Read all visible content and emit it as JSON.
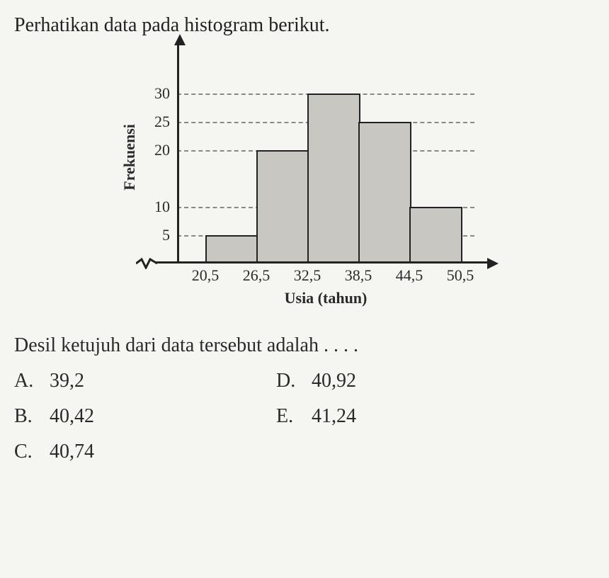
{
  "question": {
    "intro": "Perhatikan data pada histogram berikut.",
    "tail": "Desil ketujuh dari data tersebut adalah . . . ."
  },
  "chart": {
    "type": "histogram",
    "x_label": "Usia (tahun)",
    "y_label": "Frekuensi",
    "background_color": "#f5f5f2",
    "bar_fill": "#c9c7c1",
    "bar_border": "#222222",
    "axis_color": "#222222",
    "grid_color": "#888888",
    "grid_dash": "4 4",
    "y_max": 35,
    "y_ticks": [
      5,
      10,
      20,
      25,
      30
    ],
    "x_boundaries": [
      "20,5",
      "26,5",
      "32,5",
      "38,5",
      "44,5",
      "50,5"
    ],
    "bars": [
      {
        "from": "20,5",
        "to": "26,5",
        "value": 5
      },
      {
        "from": "26,5",
        "to": "32,5",
        "value": 20
      },
      {
        "from": "32,5",
        "to": "38,5",
        "value": 30
      },
      {
        "from": "38,5",
        "to": "44,5",
        "value": 25
      },
      {
        "from": "44,5",
        "to": "50,5",
        "value": 10
      }
    ],
    "label_fontsize": 22,
    "tick_fontsize": 22,
    "bar_border_width": 2.5,
    "axis_width": 3
  },
  "options": [
    {
      "letter": "A.",
      "value": "39,2"
    },
    {
      "letter": "B.",
      "value": "40,42"
    },
    {
      "letter": "C.",
      "value": "40,74"
    },
    {
      "letter": "D.",
      "value": "40,92"
    },
    {
      "letter": "E.",
      "value": "41,24"
    }
  ]
}
